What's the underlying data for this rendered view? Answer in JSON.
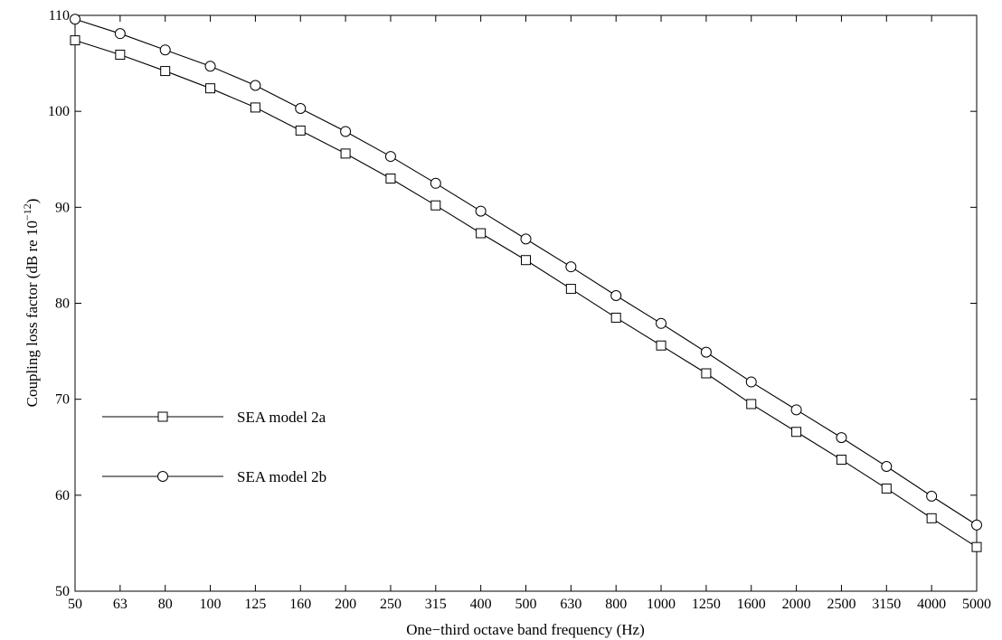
{
  "chart_data": {
    "type": "line",
    "title": "",
    "xlabel": "One−third octave band frequency (Hz)",
    "ylabel_main": "Coupling loss factor (dB re 10",
    "ylabel_sup": "−12",
    "ylabel_end": ")",
    "categories": [
      "50",
      "63",
      "80",
      "100",
      "125",
      "160",
      "200",
      "250",
      "315",
      "400",
      "500",
      "630",
      "800",
      "1000",
      "1250",
      "1600",
      "2000",
      "2500",
      "3150",
      "4000",
      "5000"
    ],
    "ylim": [
      50,
      110
    ],
    "yticks": [
      50,
      60,
      70,
      80,
      90,
      100,
      110
    ],
    "grid": false,
    "legend_position": "left",
    "series": [
      {
        "name": "SEA model 2a",
        "marker": "square",
        "color": "#000000",
        "values": [
          107.4,
          105.9,
          104.2,
          102.4,
          100.4,
          98.0,
          95.6,
          93.0,
          90.2,
          87.3,
          84.5,
          81.5,
          78.5,
          75.6,
          72.7,
          69.5,
          66.6,
          63.7,
          60.7,
          57.6,
          54.6
        ]
      },
      {
        "name": "SEA model 2b",
        "marker": "circle",
        "color": "#000000",
        "values": [
          109.6,
          108.1,
          106.4,
          104.7,
          102.7,
          100.3,
          97.9,
          95.3,
          92.5,
          89.6,
          86.7,
          83.8,
          80.8,
          77.9,
          74.9,
          71.8,
          68.9,
          66.0,
          63.0,
          59.9,
          56.9
        ]
      }
    ]
  }
}
